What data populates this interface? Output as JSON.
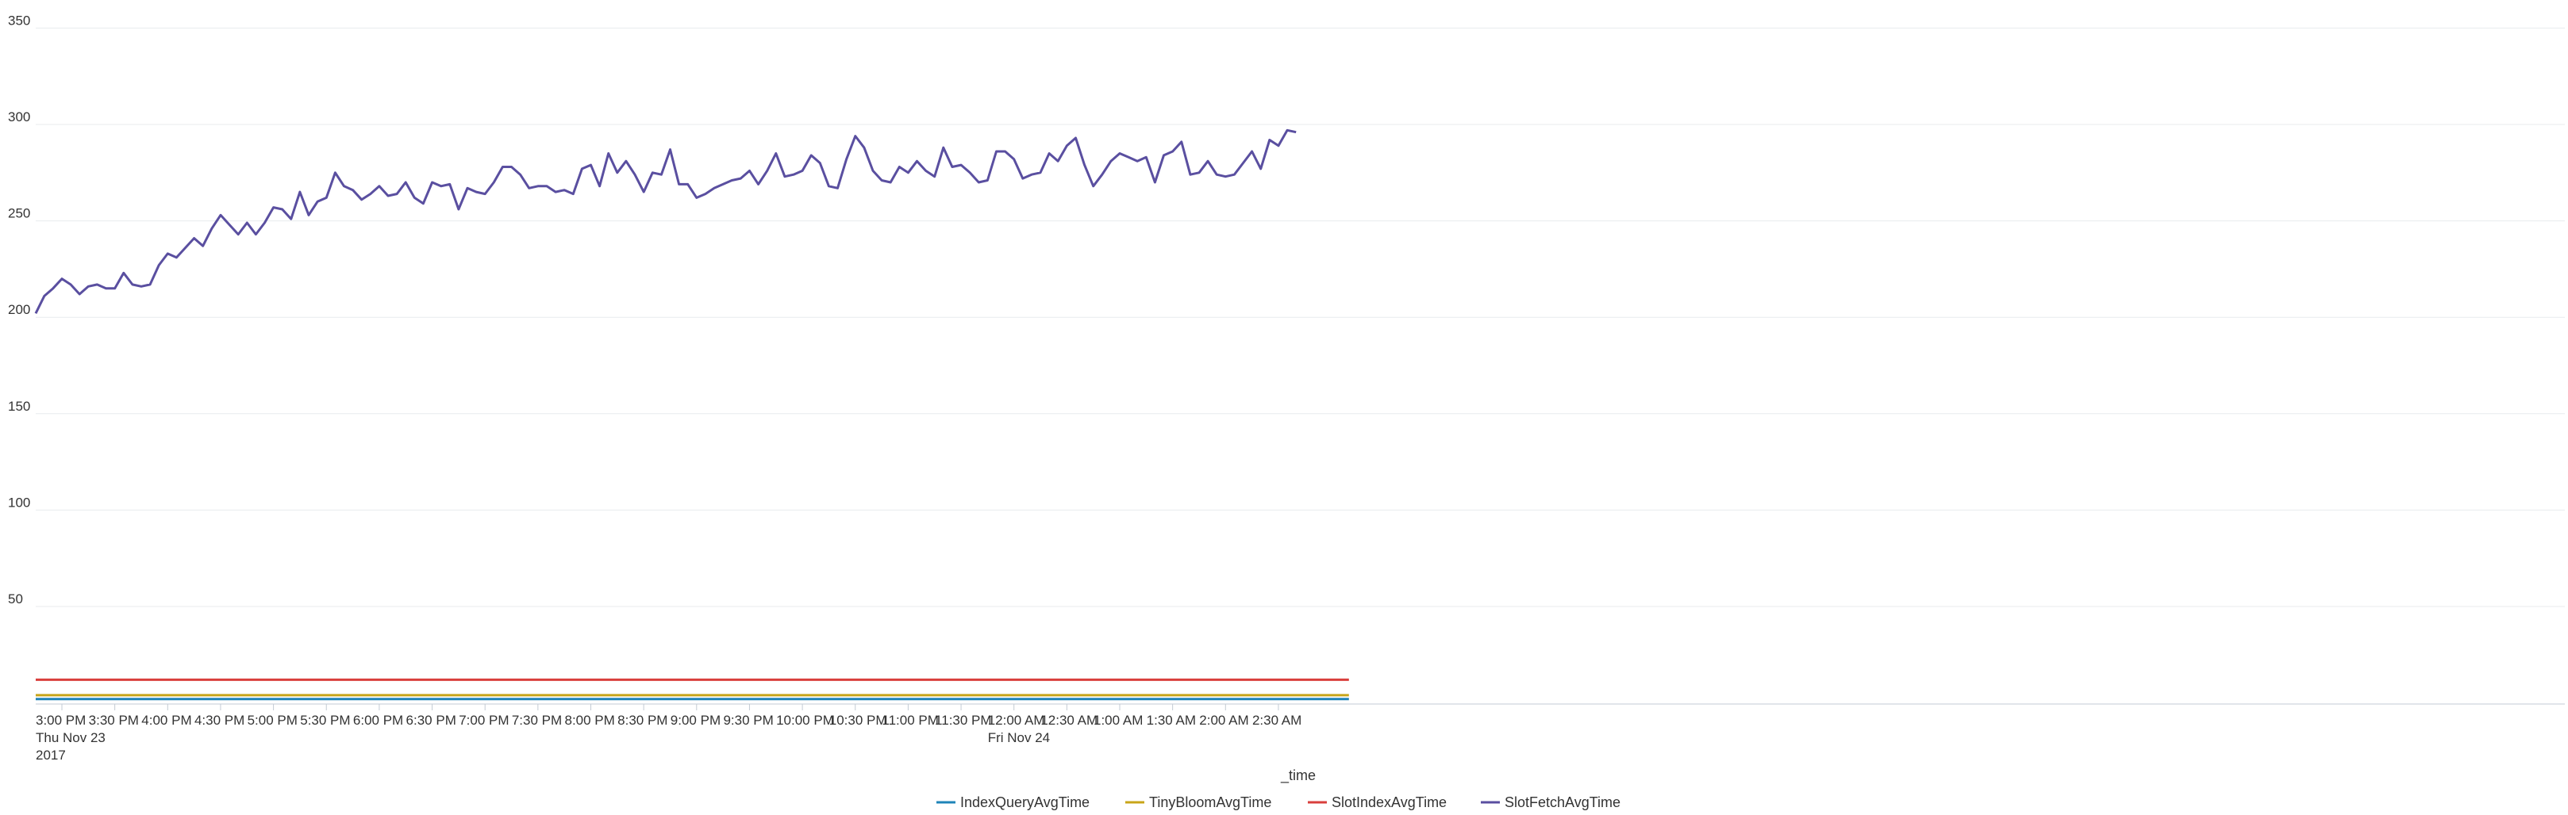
{
  "chart_data": {
    "type": "line",
    "xlabel": "_time",
    "ylabel": "",
    "ylim": [
      0,
      360
    ],
    "y_ticks": [
      "350",
      "300",
      "250",
      "200",
      "150",
      "100",
      "50"
    ],
    "y_tick_values": [
      350,
      300,
      250,
      200,
      150,
      100,
      50
    ],
    "x_ticks": [
      {
        "label": "3:00 PM",
        "label2": "Thu Nov 23",
        "label3": "2017",
        "hour": 0
      },
      {
        "label": "3:30 PM",
        "label2": "",
        "label3": "",
        "hour": 0.5
      },
      {
        "label": "4:00 PM",
        "label2": "",
        "label3": "",
        "hour": 1
      },
      {
        "label": "4:30 PM",
        "label2": "",
        "label3": "",
        "hour": 1.5
      },
      {
        "label": "5:00 PM",
        "label2": "",
        "label3": "",
        "hour": 2
      },
      {
        "label": "5:30 PM",
        "label2": "",
        "label3": "",
        "hour": 2.5
      },
      {
        "label": "6:00 PM",
        "label2": "",
        "label3": "",
        "hour": 3
      },
      {
        "label": "6:30 PM",
        "label2": "",
        "label3": "",
        "hour": 3.5
      },
      {
        "label": "7:00 PM",
        "label2": "",
        "label3": "",
        "hour": 4
      },
      {
        "label": "7:30 PM",
        "label2": "",
        "label3": "",
        "hour": 4.5
      },
      {
        "label": "8:00 PM",
        "label2": "",
        "label3": "",
        "hour": 5
      },
      {
        "label": "8:30 PM",
        "label2": "",
        "label3": "",
        "hour": 5.5
      },
      {
        "label": "9:00 PM",
        "label2": "",
        "label3": "",
        "hour": 6
      },
      {
        "label": "9:30 PM",
        "label2": "",
        "label3": "",
        "hour": 6.5
      },
      {
        "label": "10:00 PM",
        "label2": "",
        "label3": "",
        "hour": 7
      },
      {
        "label": "10:30 PM",
        "label2": "",
        "label3": "",
        "hour": 7.5
      },
      {
        "label": "11:00 PM",
        "label2": "",
        "label3": "",
        "hour": 8
      },
      {
        "label": "11:30 PM",
        "label2": "",
        "label3": "",
        "hour": 8.5
      },
      {
        "label": "12:00 AM",
        "label2": "Fri Nov 24",
        "label3": "",
        "hour": 9
      },
      {
        "label": "12:30 AM",
        "label2": "",
        "label3": "",
        "hour": 9.5
      },
      {
        "label": "1:00 AM",
        "label2": "",
        "label3": "",
        "hour": 10
      },
      {
        "label": "1:30 AM",
        "label2": "",
        "label3": "",
        "hour": 10.5
      },
      {
        "label": "2:00 AM",
        "label2": "",
        "label3": "",
        "hour": 11
      },
      {
        "label": "2:30 AM",
        "label2": "",
        "label3": "",
        "hour": 11.5
      }
    ],
    "x_start_hour": -0.25,
    "x_step_minutes": 5,
    "series": [
      {
        "name": "IndexQueryAvgTime",
        "color": "#1f84b8",
        "values": [
          2,
          2,
          2,
          2,
          2,
          2,
          2,
          2,
          2,
          2,
          2,
          2,
          2,
          2,
          2,
          2,
          2,
          2,
          2,
          2,
          2,
          2,
          2,
          2,
          2,
          2,
          2,
          2,
          2,
          2,
          2,
          2,
          2,
          2,
          2,
          2,
          2,
          2,
          2,
          2,
          2,
          2,
          2,
          2,
          2,
          2,
          2,
          2,
          2,
          2,
          2,
          2,
          2,
          2,
          2,
          2,
          2,
          2,
          2,
          2,
          2,
          2,
          2,
          2,
          2,
          2,
          2,
          2,
          2,
          2,
          2,
          2,
          2,
          2,
          2,
          2,
          2,
          2,
          2,
          2,
          2,
          2,
          2,
          2,
          2,
          2,
          2,
          2,
          2,
          2,
          2,
          2,
          2,
          2,
          2,
          2,
          2,
          2,
          2,
          2,
          2,
          2,
          2,
          2,
          2,
          2,
          2,
          2,
          2,
          2,
          2,
          2,
          2,
          2,
          2,
          2,
          2,
          2,
          2,
          2,
          2,
          2,
          2,
          2,
          2,
          2,
          2,
          2,
          2,
          2,
          2,
          2,
          2,
          2,
          2,
          2,
          2,
          2,
          2,
          2,
          2,
          2,
          2,
          2,
          2,
          2,
          2,
          2,
          2,
          2
        ]
      },
      {
        "name": "TinyBloomAvgTime",
        "color": "#c8a519",
        "values": [
          4,
          4,
          4,
          4,
          4,
          4,
          4,
          4,
          4,
          4,
          4,
          4,
          4,
          4,
          4,
          4,
          4,
          4,
          4,
          4,
          4,
          4,
          4,
          4,
          4,
          4,
          4,
          4,
          4,
          4,
          4,
          4,
          4,
          4,
          4,
          4,
          4,
          4,
          4,
          4,
          4,
          4,
          4,
          4,
          4,
          4,
          4,
          4,
          4,
          4,
          4,
          4,
          4,
          4,
          4,
          4,
          4,
          4,
          4,
          4,
          4,
          4,
          4,
          4,
          4,
          4,
          4,
          4,
          4,
          4,
          4,
          4,
          4,
          4,
          4,
          4,
          4,
          4,
          4,
          4,
          4,
          4,
          4,
          4,
          4,
          4,
          4,
          4,
          4,
          4,
          4,
          4,
          4,
          4,
          4,
          4,
          4,
          4,
          4,
          4,
          4,
          4,
          4,
          4,
          4,
          4,
          4,
          4,
          4,
          4,
          4,
          4,
          4,
          4,
          4,
          4,
          4,
          4,
          4,
          4,
          4,
          4,
          4,
          4,
          4,
          4,
          4,
          4,
          4,
          4,
          4,
          4,
          4,
          4,
          4,
          4,
          4,
          4,
          4,
          4,
          4,
          4,
          4,
          4,
          4,
          4,
          4,
          4,
          4,
          4
        ]
      },
      {
        "name": "SlotIndexAvgTime",
        "color": "#d93f3c",
        "values": [
          12,
          12,
          12,
          12,
          12,
          12,
          12,
          12,
          12,
          12,
          12,
          12,
          12,
          12,
          12,
          12,
          12,
          12,
          12,
          12,
          12,
          12,
          12,
          12,
          12,
          12,
          12,
          12,
          12,
          12,
          12,
          12,
          12,
          12,
          12,
          12,
          12,
          12,
          12,
          12,
          12,
          12,
          12,
          12,
          12,
          12,
          12,
          12,
          12,
          12,
          12,
          12,
          12,
          12,
          12,
          12,
          12,
          12,
          12,
          12,
          12,
          12,
          12,
          12,
          12,
          12,
          12,
          12,
          12,
          12,
          12,
          12,
          12,
          12,
          12,
          12,
          12,
          12,
          12,
          12,
          12,
          12,
          12,
          12,
          12,
          12,
          12,
          12,
          12,
          12,
          12,
          12,
          12,
          12,
          12,
          12,
          12,
          12,
          12,
          12,
          12,
          12,
          12,
          12,
          12,
          12,
          12,
          12,
          12,
          12,
          12,
          12,
          12,
          12,
          12,
          12,
          12,
          12,
          12,
          12,
          12,
          12,
          12,
          12,
          12,
          12,
          12,
          12,
          12,
          12,
          12,
          12,
          12,
          12,
          12,
          12,
          12,
          12,
          12,
          12,
          12,
          12,
          12,
          12,
          12,
          12,
          12,
          12,
          12,
          12
        ]
      },
      {
        "name": "SlotFetchAvgTime",
        "color": "#5a4fa0",
        "values": [
          202,
          211,
          215,
          220,
          217,
          212,
          216,
          217,
          215,
          215,
          223,
          217,
          216,
          217,
          227,
          233,
          231,
          236,
          241,
          237,
          246,
          253,
          248,
          243,
          249,
          243,
          249,
          257,
          256,
          251,
          265,
          253,
          260,
          262,
          275,
          268,
          266,
          261,
          264,
          268,
          263,
          264,
          270,
          262,
          259,
          270,
          268,
          269,
          256,
          267,
          265,
          264,
          270,
          278,
          278,
          274,
          267,
          268,
          268,
          265,
          266,
          264,
          277,
          279,
          268,
          285,
          275,
          281,
          274,
          265,
          275,
          274,
          287,
          269,
          269,
          262,
          264,
          267,
          269,
          271,
          272,
          276,
          269,
          276,
          285,
          273,
          274,
          276,
          284,
          280,
          268,
          267,
          282,
          294,
          288,
          276,
          271,
          270,
          278,
          275,
          281,
          276,
          273,
          288,
          278,
          279,
          275,
          270,
          271,
          286,
          286,
          282,
          272,
          274,
          275,
          285,
          281,
          289,
          293,
          279,
          268,
          274,
          281,
          285,
          283,
          281,
          283,
          270,
          284,
          286,
          291,
          274,
          275,
          281,
          274,
          273,
          274,
          280,
          286,
          277,
          292,
          289,
          297,
          296
        ]
      }
    ],
    "legend": {
      "position": "bottom"
    },
    "grid": true
  }
}
